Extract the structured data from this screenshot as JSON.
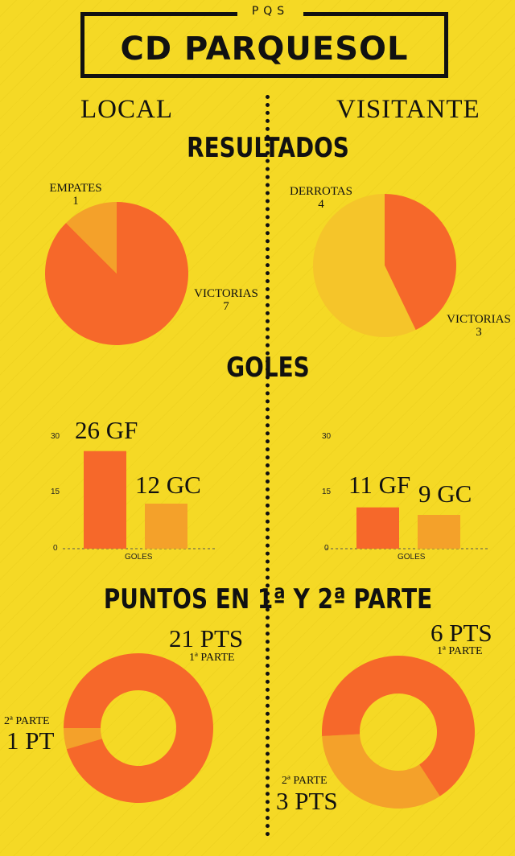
{
  "header": {
    "tag": "PQS",
    "title": "CD PARQUESOL"
  },
  "columns": {
    "left": "LOCAL",
    "right": "VISITANTE"
  },
  "sections": {
    "results": "RESULTADOS",
    "goals": "GOLES",
    "points": "PUNTOS EN 1ª Y 2ª PARTE"
  },
  "colors": {
    "background": "#f5d925",
    "primary": "#f6682a",
    "secondary": "#f4a12a",
    "tertiary": "#f5c52a"
  },
  "chart_data": [
    {
      "type": "pie",
      "name": "local-resultados",
      "slices": [
        {
          "label": "VICTORIAS",
          "value": 7,
          "color": "#f6682a"
        },
        {
          "label": "EMPATES",
          "value": 1,
          "color": "#f4a12a"
        }
      ]
    },
    {
      "type": "pie",
      "name": "visitante-resultados",
      "slices": [
        {
          "label": "VICTORIAS",
          "value": 3,
          "color": "#f6682a"
        },
        {
          "label": "DERROTAS",
          "value": 4,
          "color": "#f5c52a"
        }
      ]
    },
    {
      "type": "bar",
      "name": "local-goles",
      "categories": [
        "GF",
        "GC"
      ],
      "values": [
        26,
        12
      ],
      "data_labels": [
        "26 GF",
        "12 GC"
      ],
      "xlabel": "GOLES",
      "yticks": [
        "0",
        "15",
        "30"
      ],
      "ylim": [
        0,
        30
      ]
    },
    {
      "type": "bar",
      "name": "visitante-goles",
      "categories": [
        "GF",
        "GC"
      ],
      "values": [
        11,
        9
      ],
      "data_labels": [
        "11 GF",
        "9 GC"
      ],
      "xlabel": "GOLES",
      "yticks": [
        "0",
        "15",
        "30"
      ],
      "ylim": [
        0,
        30
      ]
    },
    {
      "type": "pie",
      "name": "local-puntos",
      "donut": true,
      "slices": [
        {
          "label": "1ª PARTE",
          "value": 21,
          "display": "21 PTS",
          "color": "#f6682a"
        },
        {
          "label": "2ª PARTE",
          "value": 1,
          "display": "1 PT",
          "color": "#f4a12a"
        }
      ]
    },
    {
      "type": "pie",
      "name": "visitante-puntos",
      "donut": true,
      "slices": [
        {
          "label": "1ª PARTE",
          "value": 6,
          "display": "6 PTS",
          "color": "#f6682a"
        },
        {
          "label": "2ª PARTE",
          "value": 3,
          "display": "3 PTS",
          "color": "#f4a12a"
        }
      ]
    }
  ]
}
